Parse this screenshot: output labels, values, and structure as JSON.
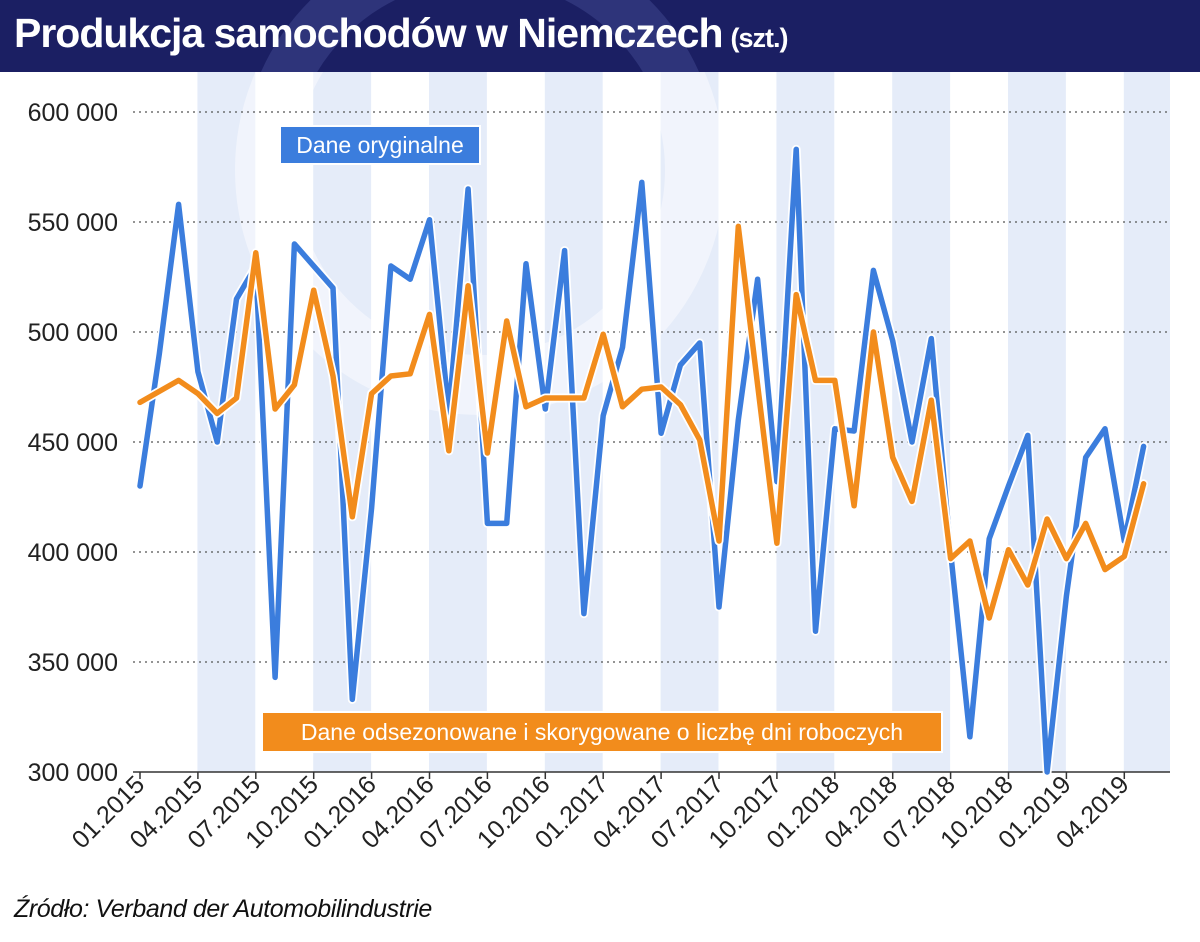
{
  "title": "Produkcja samochodów w Niemczech",
  "title_unit": "(szt.)",
  "source": "Źródło: Verband der Automobilindustrie",
  "colors": {
    "header_bg": "#1b1f63",
    "series_original": "#3b7ddd",
    "series_adjusted": "#f28c1c",
    "band": "#dce6f7"
  },
  "chart_data": {
    "type": "line",
    "title": "Produkcja samochodów w Niemczech",
    "ylim": [
      300000,
      600000
    ],
    "y_ticks": [
      300000,
      350000,
      400000,
      450000,
      500000,
      550000,
      600000
    ],
    "y_tick_labels": [
      "300 000",
      "350 000",
      "400 000",
      "450 000",
      "500 000",
      "550 000",
      "600 000"
    ],
    "x_tick_labels": [
      "01.2015",
      "04.2015",
      "07.2015",
      "10.2015",
      "01.2016",
      "04.2016",
      "07.2016",
      "10.2016",
      "01.2017",
      "04.2017",
      "07.2017",
      "10.2017",
      "01.2018",
      "04.2018",
      "07.2018",
      "10.2018",
      "01.2019",
      "04.2019"
    ],
    "x_start": "01.2015",
    "x_end": "06.2019",
    "grid": "horizontal-dotted",
    "series": [
      {
        "name": "Dane oryginalne",
        "color": "#3b7ddd",
        "values": [
          430000,
          490000,
          558000,
          482000,
          450000,
          515000,
          530000,
          343000,
          540000,
          530000,
          520000,
          333000,
          420000,
          530000,
          524000,
          551000,
          463000,
          565000,
          413000,
          413000,
          531000,
          465000,
          537000,
          372000,
          462000,
          493000,
          568000,
          454000,
          485000,
          495000,
          375000,
          460000,
          524000,
          432000,
          583000,
          364000,
          456000,
          455000,
          528000,
          496000,
          450000,
          497000,
          400000,
          316000,
          406000,
          430000,
          453000,
          300000,
          380000,
          443000,
          456000,
          405000,
          448000
        ]
      },
      {
        "name": "Dane odsezonowane i skorygowane o liczbę dni roboczych",
        "color": "#f28c1c",
        "values": [
          468000,
          473000,
          478000,
          472000,
          463000,
          470000,
          536000,
          465000,
          476000,
          519000,
          480000,
          416000,
          472000,
          480000,
          481000,
          508000,
          446000,
          521000,
          445000,
          505000,
          466000,
          470000,
          470000,
          470000,
          499000,
          466000,
          474000,
          475000,
          467000,
          451000,
          405000,
          548000,
          476000,
          404000,
          517000,
          478000,
          478000,
          421000,
          500000,
          443000,
          423000,
          469000,
          397000,
          405000,
          370000,
          401000,
          385000,
          415000,
          397000,
          413000,
          392000,
          398000,
          431000
        ]
      }
    ],
    "annotations": [
      "Dane oryginalne",
      "Dane odsezonowane i skorygowane o liczbę dni roboczych"
    ]
  }
}
